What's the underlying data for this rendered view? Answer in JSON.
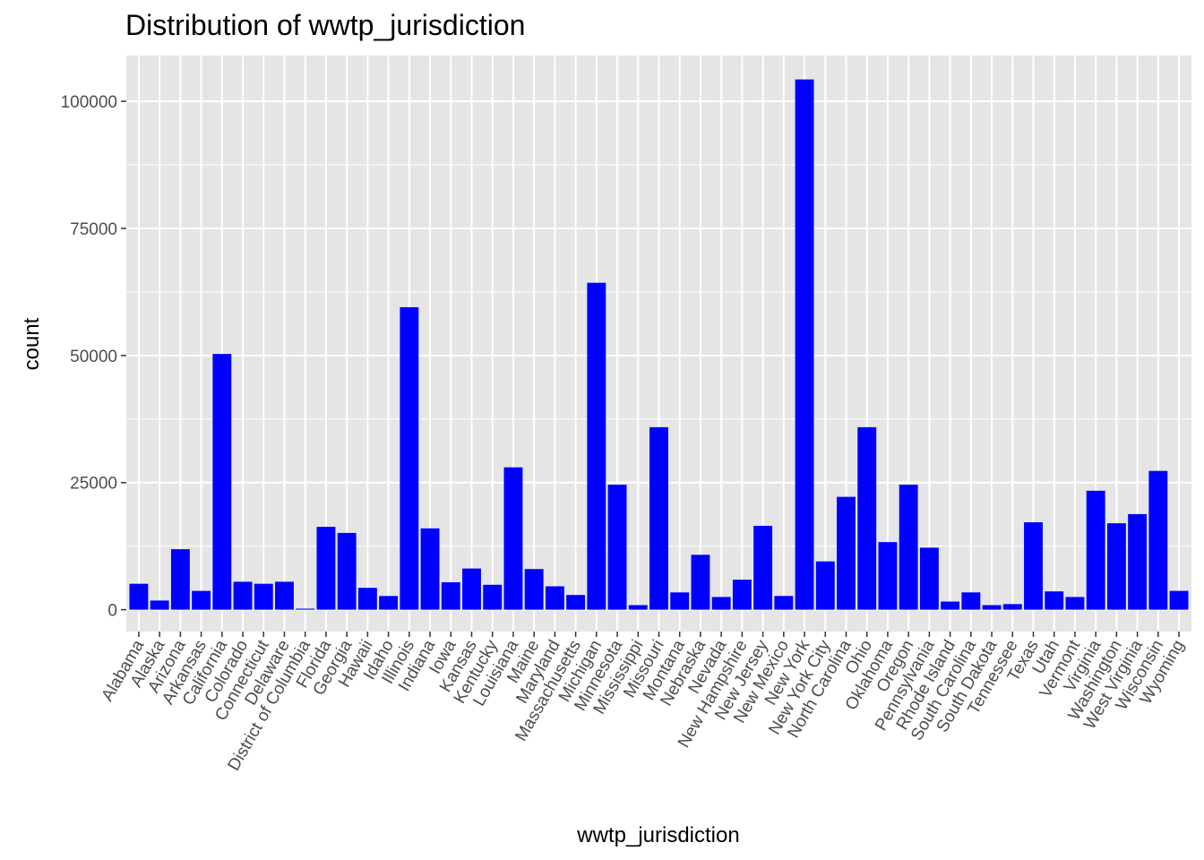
{
  "chart_data": {
    "type": "bar",
    "title": "Distribution of wwtp_jurisdiction",
    "xlabel": "wwtp_jurisdiction",
    "ylabel": "count",
    "ylim": [
      -4300,
      109000
    ],
    "yticks": [
      0,
      25000,
      50000,
      75000,
      100000
    ],
    "ytick_labels": [
      "0",
      "25000",
      "50000",
      "75000",
      "100000"
    ],
    "grid": true,
    "bar_color": "#0000ff",
    "panel_color": "#e5e5e5",
    "grid_color": "#ffffff",
    "categories": [
      "Alabama",
      "Alaska",
      "Arizona",
      "Arkansas",
      "California",
      "Colorado",
      "Connecticut",
      "Delaware",
      "District of Columbia",
      "Florida",
      "Georgia",
      "Hawaii",
      "Idaho",
      "Illinois",
      "Indiana",
      "Iowa",
      "Kansas",
      "Kentucky",
      "Louisiana",
      "Maine",
      "Maryland",
      "Massachusetts",
      "Michigan",
      "Minnesota",
      "Mississippi",
      "Missouri",
      "Montana",
      "Nebraska",
      "Nevada",
      "New Hampshire",
      "New Jersey",
      "New Mexico",
      "New York",
      "New York City",
      "North Carolina",
      "Ohio",
      "Oklahoma",
      "Oregon",
      "Pennsylvania",
      "Rhode Island",
      "South Carolina",
      "South Dakota",
      "Tennessee",
      "Texas",
      "Utah",
      "Vermont",
      "Virginia",
      "Washington",
      "West Virginia",
      "Wisconsin",
      "Wyoming"
    ],
    "values": [
      5100,
      1800,
      11900,
      3700,
      50300,
      5500,
      5100,
      5500,
      200,
      16300,
      15100,
      4300,
      2700,
      59500,
      16000,
      5400,
      8100,
      4900,
      28000,
      8000,
      4600,
      2900,
      64300,
      24600,
      900,
      35900,
      3400,
      10800,
      2500,
      5900,
      16500,
      2700,
      104300,
      9500,
      22200,
      35900,
      13300,
      24600,
      12200,
      1600,
      3400,
      900,
      1100,
      17200,
      3600,
      2500,
      23400,
      17000,
      18800,
      27300,
      3700
    ]
  }
}
